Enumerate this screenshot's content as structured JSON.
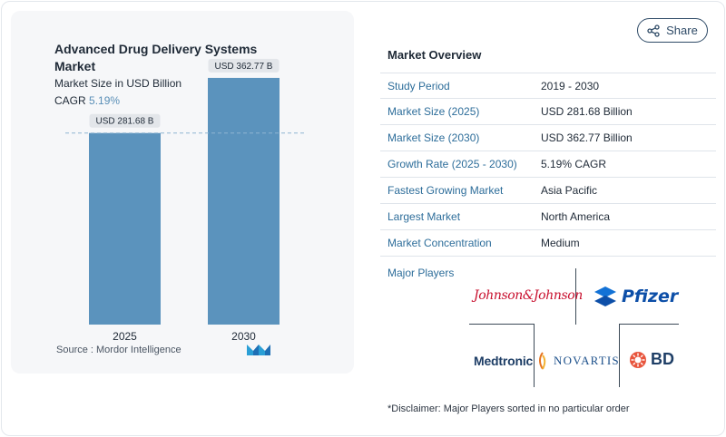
{
  "chart": {
    "title": "Advanced Drug Delivery Systems Market",
    "subtitle": "Market Size in USD Billion",
    "cagr_label": "CAGR",
    "cagr_value": "5.19%",
    "source": "Source :  Mordor Intelligence"
  },
  "chart_data": {
    "type": "bar",
    "title": "Advanced Drug Delivery Systems Market",
    "subtitle": "Market Size in USD Billion",
    "categories": [
      "2025",
      "2030"
    ],
    "values": [
      281.68,
      362.77
    ],
    "data_labels": [
      "USD 281.68 B",
      "USD 362.77 B"
    ],
    "ylim": [
      0,
      400
    ],
    "reference_line": 281.68,
    "bar_color": "#5b93bd",
    "grid": false
  },
  "share": {
    "label": "Share"
  },
  "overview": {
    "title": "Market Overview",
    "rows": [
      {
        "key": "Study Period",
        "value": "2019 - 2030"
      },
      {
        "key": "Market Size (2025)",
        "value": "USD 281.68 Billion"
      },
      {
        "key": "Market Size (2030)",
        "value": "USD 362.77 Billion"
      },
      {
        "key": "Growth Rate (2025 - 2030)",
        "value": "5.19% CAGR"
      },
      {
        "key": "Fastest Growing Market",
        "value": "Asia Pacific"
      },
      {
        "key": "Largest Market",
        "value": "North America"
      },
      {
        "key": "Market Concentration",
        "value": "Medium"
      }
    ]
  },
  "players": {
    "label": "Major Players",
    "logos": [
      "Johnson&Johnson",
      "Pfizer",
      "Medtronic",
      "NOVARTIS",
      "BD"
    ]
  },
  "disclaimer": "*Disclaimer: Major Players sorted in no particular order",
  "colors": {
    "accent": "#2d6d9a",
    "bar": "#5b93bd",
    "cagr": "#5a8fb7"
  }
}
